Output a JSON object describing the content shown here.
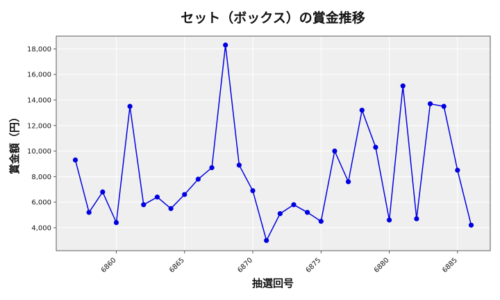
{
  "chart_data": {
    "type": "line",
    "title": "セット（ボックス）の賞金推移",
    "xlabel": "抽選回号",
    "ylabel": "賞金額（円）",
    "xlim": [
      6855.6,
      6887.4
    ],
    "ylim": [
      2200,
      19000
    ],
    "x_ticks": [
      6860,
      6865,
      6870,
      6875,
      6880,
      6885
    ],
    "y_ticks": [
      4000,
      6000,
      8000,
      10000,
      12000,
      14000,
      16000,
      18000
    ],
    "grid": true,
    "series": [
      {
        "color": "#0000e0",
        "x": [
          6857,
          6858,
          6859,
          6860,
          6861,
          6862,
          6863,
          6864,
          6865,
          6866,
          6867,
          6868,
          6869,
          6870,
          6871,
          6872,
          6873,
          6874,
          6875,
          6876,
          6877,
          6878,
          6879,
          6880,
          6881,
          6882,
          6883,
          6884,
          6885,
          6886
        ],
        "y": [
          9300,
          5200,
          6800,
          4400,
          13500,
          5800,
          6400,
          5500,
          6600,
          7800,
          8700,
          18300,
          8900,
          6900,
          3000,
          5100,
          5800,
          5200,
          4500,
          10000,
          7600,
          13200,
          10300,
          4600,
          15100,
          4700,
          13700,
          13500,
          8500,
          4200
        ]
      }
    ]
  }
}
